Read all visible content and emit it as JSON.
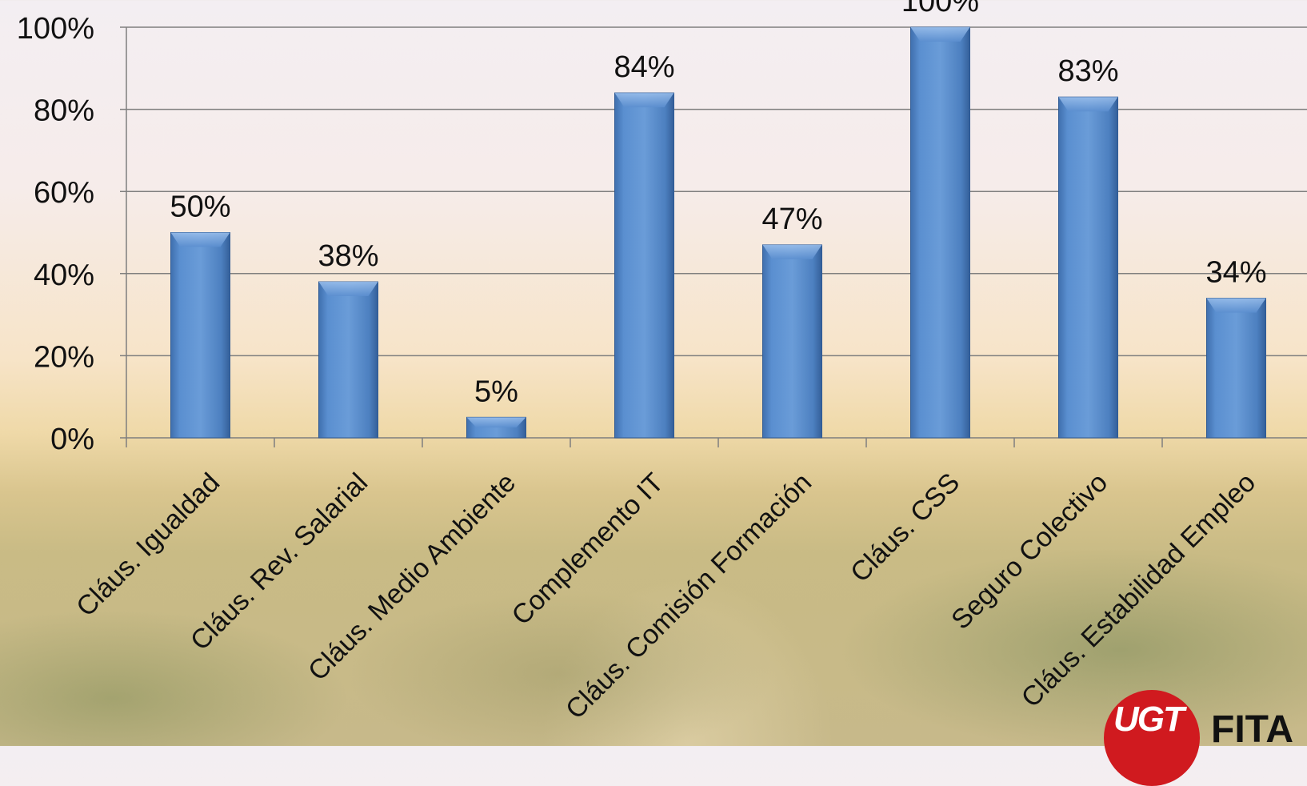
{
  "chart_data": {
    "type": "bar",
    "categories": [
      "Cláus. Igualdad",
      "Cláus. Rev. Salarial",
      "Cláus. Medio Ambiente",
      "Complemento IT",
      "Cláus. Comisión Formación",
      "Cláus. CSS",
      "Seguro Colectivo",
      "Cláus. Estabilidad Empleo"
    ],
    "values": [
      50,
      38,
      5,
      84,
      47,
      100,
      83,
      34
    ],
    "value_labels": [
      "50%",
      "38%",
      "5%",
      "84%",
      "47%",
      "100%",
      "83%",
      "34%"
    ],
    "y_ticks": [
      "0%",
      "20%",
      "40%",
      "60%",
      "80%",
      "100%"
    ],
    "ylim": [
      0,
      100
    ],
    "grid": true,
    "bar_color": "#4f81bd"
  },
  "logo": {
    "mark": "UGT",
    "text": "FITA"
  }
}
